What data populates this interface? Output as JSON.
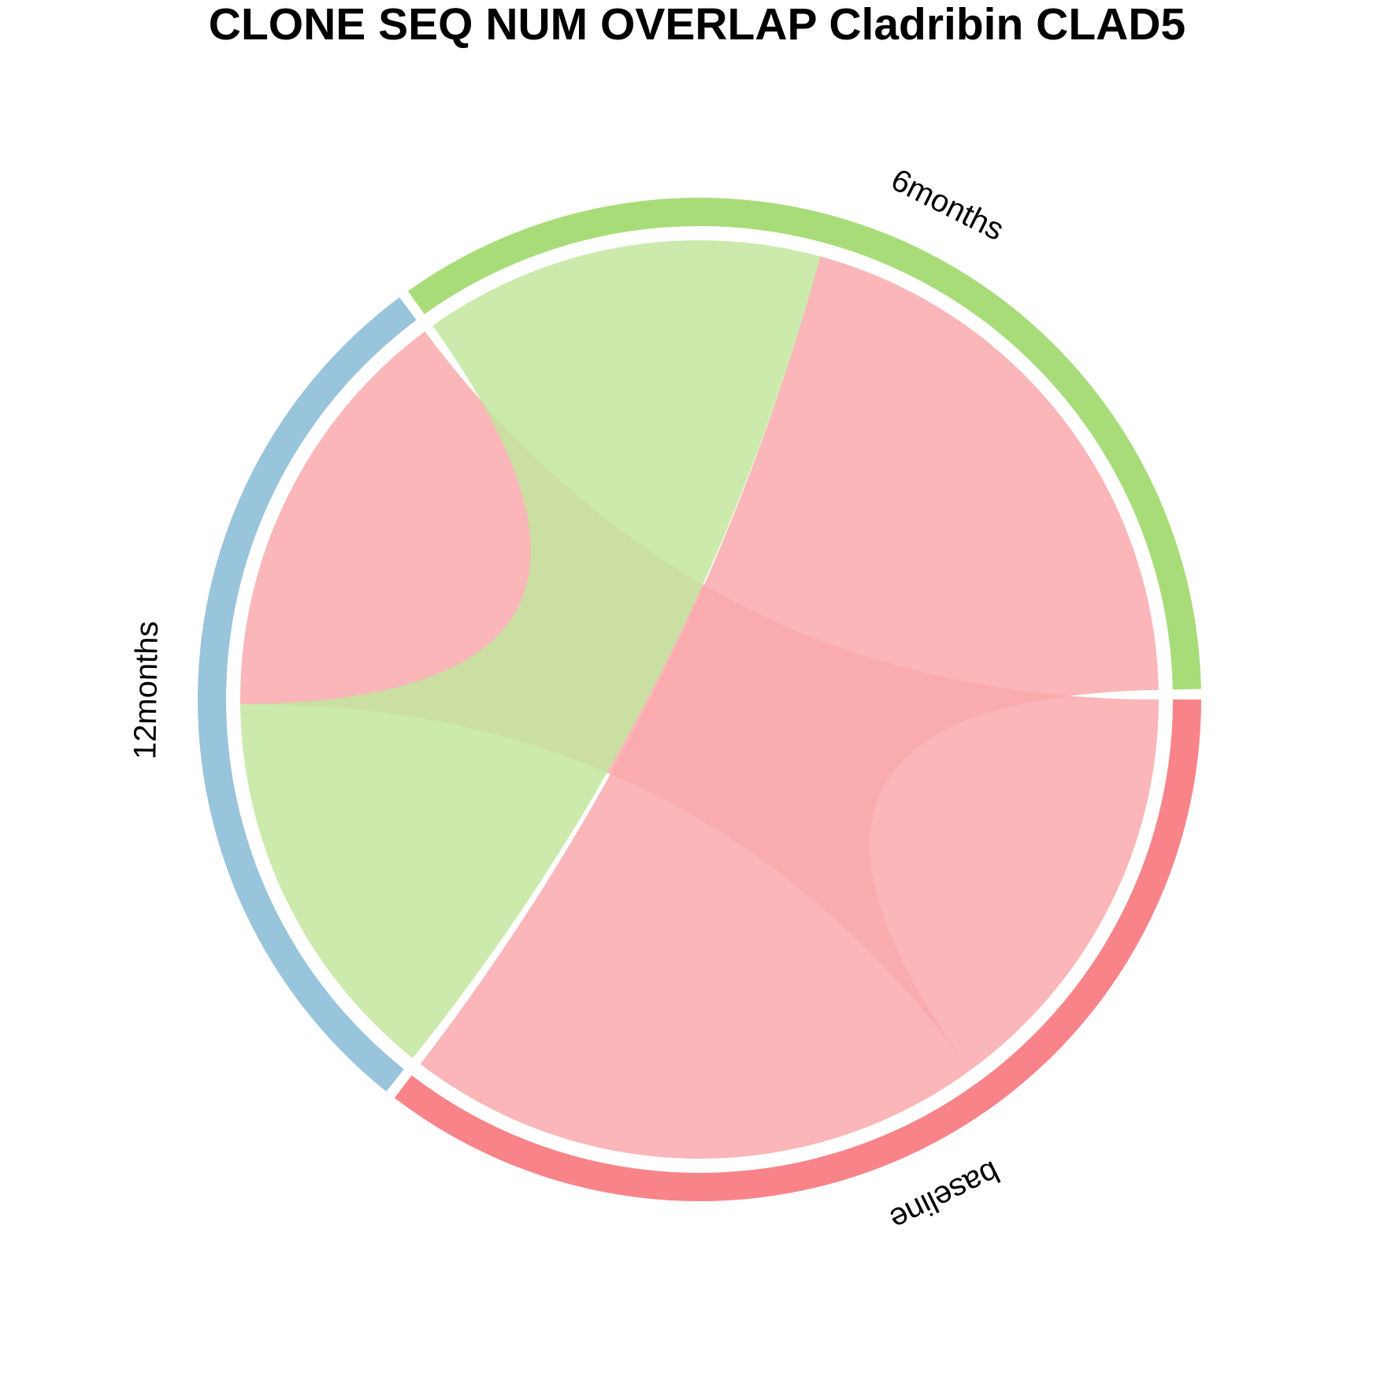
{
  "chart_data": {
    "type": "chord",
    "title": "CLONE SEQ NUM OVERLAP Cladribin CLAD5",
    "sectors": [
      {
        "name": "baseline",
        "color": "#F8848A"
      },
      {
        "name": "12months",
        "color": "#98C4DC"
      },
      {
        "name": "6months",
        "color": "#A8DC78"
      }
    ],
    "links": [
      {
        "from": "baseline",
        "to": "12months",
        "value": 0.52,
        "color": "#F9A9AC"
      },
      {
        "from": "baseline",
        "to": "6months",
        "value": 0.71,
        "color": "#F9A9AC"
      },
      {
        "from": "6months",
        "to": "12months",
        "value": 0.49,
        "color": "#C2E69E"
      }
    ]
  }
}
